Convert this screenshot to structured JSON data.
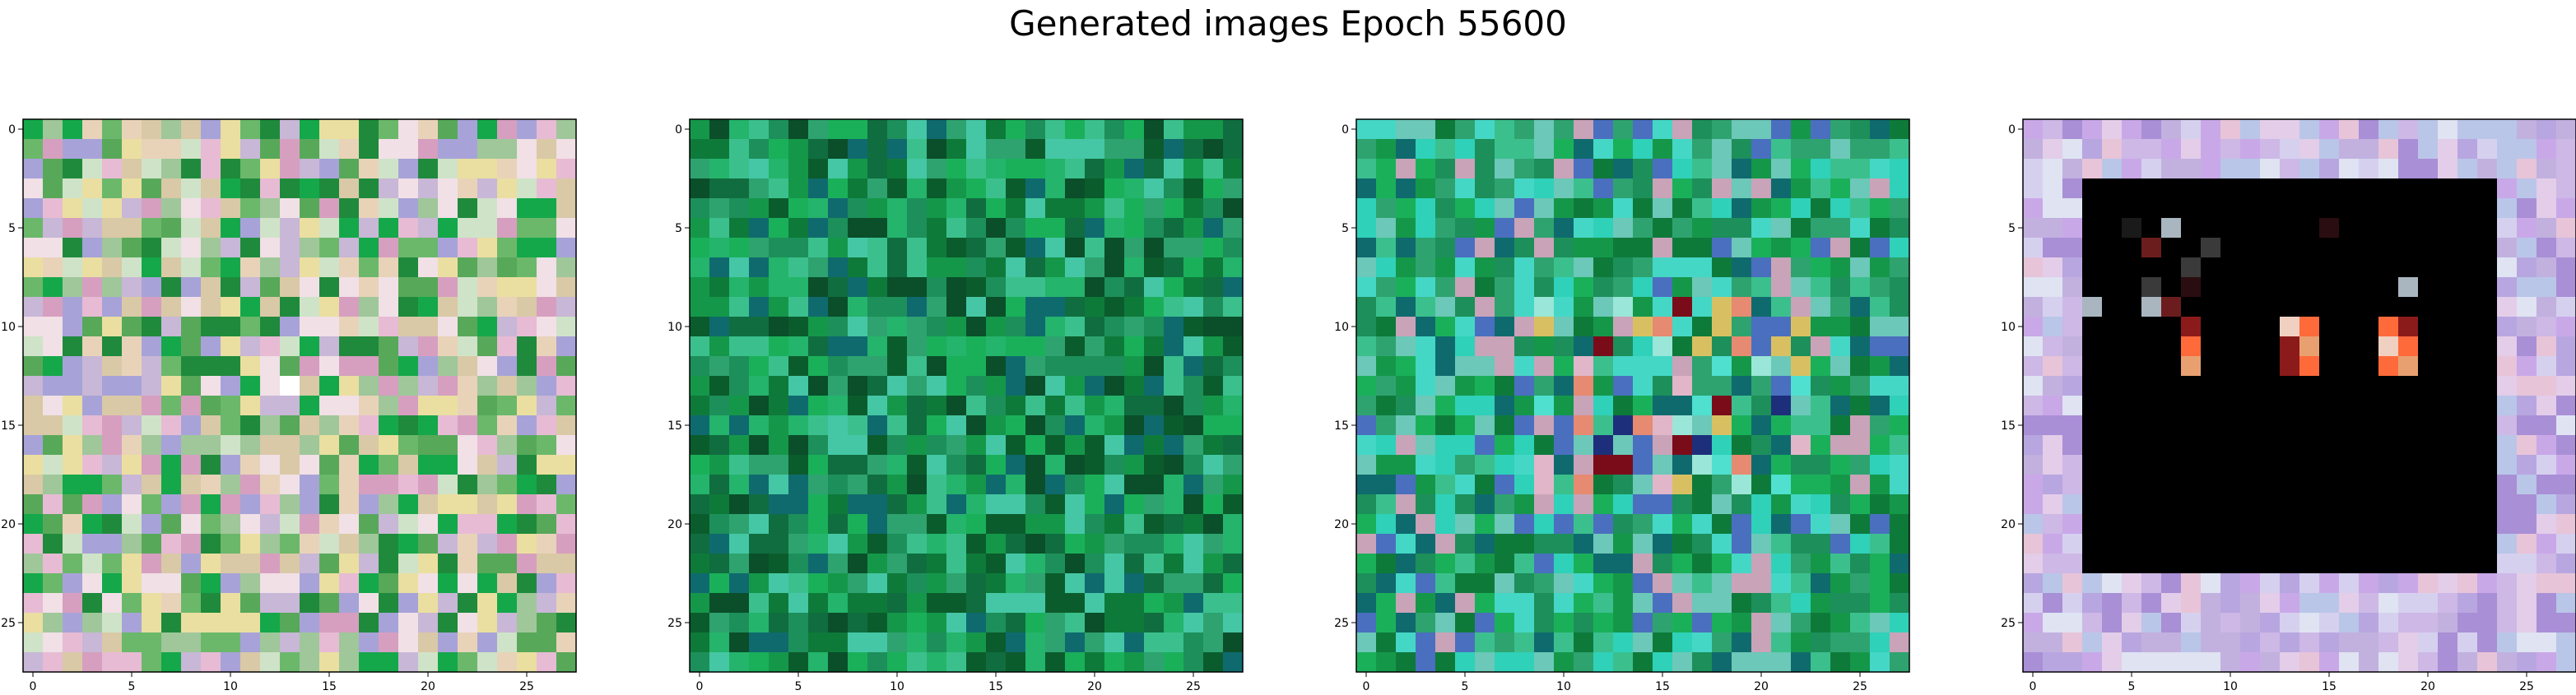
{
  "figure": {
    "title": "Generated images Epoch 55600",
    "image_size": 28,
    "x_ticks": [
      "0",
      "5",
      "10",
      "15",
      "20",
      "25"
    ],
    "y_ticks": [
      "0",
      "5",
      "10",
      "15",
      "20",
      "25"
    ]
  },
  "panels": [
    {
      "name": "generated-image-1",
      "palette": "pastel-green-mix",
      "frame_color": "#000000"
    },
    {
      "name": "generated-image-2",
      "palette": "green-noise",
      "frame_color": "#000000"
    },
    {
      "name": "generated-image-3",
      "palette": "green-with-cyan-center",
      "frame_color": "#000000"
    },
    {
      "name": "generated-image-4",
      "palette": "pastel-border-black-center",
      "frame_color": "#000000"
    }
  ],
  "palettes": {
    "pastel-green-mix": [
      "#1f8a3c",
      "#58a85a",
      "#9fc79a",
      "#d9c9a6",
      "#e8d3b9",
      "#c8b7d6",
      "#a7a3d8",
      "#e7bbd4",
      "#cfe3c8",
      "#eadfa0",
      "#14a84a",
      "#6bb86b",
      "#d69fbf",
      "#f1e0e6"
    ],
    "green-noise": [
      "#0e7a3a",
      "#15974a",
      "#0b5c2c",
      "#1ab05a",
      "#2ea36f",
      "#0f6a6e",
      "#3bc08d",
      "#106d3f",
      "#24b46b",
      "#0a4e2a",
      "#45c7a5",
      "#1d8f5a"
    ],
    "green-with-cyan-center": [
      "#0e7a3a",
      "#15974a",
      "#1ab05a",
      "#2ea36f",
      "#3bc08d",
      "#45d7c6",
      "#2fd1b9",
      "#0f6a6e",
      "#6cc8b8",
      "#1d8f5a",
      "#4a6fbf",
      "#c9a3b8"
    ],
    "pastel-border-black-center": [
      "#cdb8e6",
      "#b8a6e0",
      "#e3cde9",
      "#d6d0ef",
      "#c2b1df",
      "#e7c4d8",
      "#a98fd6",
      "#dfe3f2",
      "#c9a8e8",
      "#b9c6e8"
    ]
  }
}
